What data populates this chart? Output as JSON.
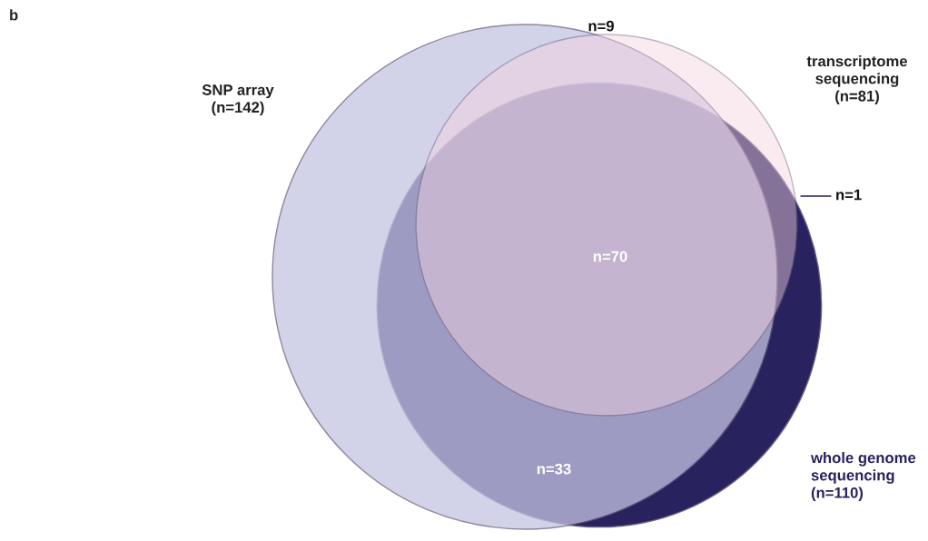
{
  "chart_data": {
    "type": "other",
    "title": "b",
    "categories": [
      "SNP array",
      "transcriptome\nsequencing",
      "whole genome\nsequencing"
    ],
    "values": [
      142,
      81,
      110
    ],
    "value_labels": [
      "(n=142)",
      "(n=81)",
      "(n=110)"
    ],
    "colors": [
      "#c4c4e2",
      "#f6d3e0",
      "#28225e"
    ],
    "annotations": [
      "n=9",
      "n=1",
      "n=70",
      "n=33"
    ]
  }
}
